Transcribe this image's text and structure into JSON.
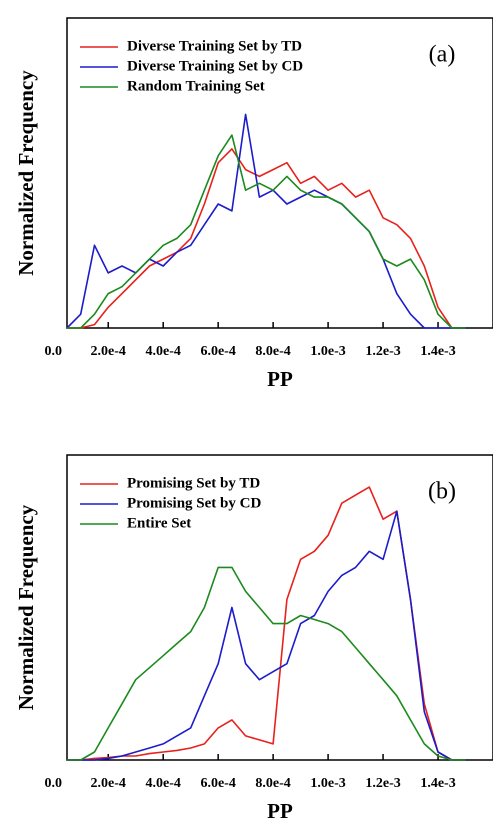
{
  "chart_data": [
    {
      "type": "line",
      "annotation": "(a)",
      "xlabel": "PP",
      "ylabel": "Normalized Frequency",
      "legend": "upper left",
      "x": [
        5e-05,
        0.0001,
        0.00015,
        0.0002,
        0.00025,
        0.0003,
        0.00035,
        0.0004,
        0.00045,
        0.0005,
        0.00055,
        0.0006,
        0.00065,
        0.0007,
        0.00075,
        0.0008,
        0.00085,
        0.0009,
        0.00095,
        0.001,
        0.00105,
        0.0011,
        0.00115,
        0.0012,
        0.00125,
        0.0013,
        0.00135,
        0.0014,
        0.00145,
        0.0015
      ],
      "series": [
        {
          "name": "Diverse Training Set by TD",
          "color": "#e8211c",
          "values": [
            0,
            0,
            0.05,
            0.3,
            0.5,
            0.7,
            0.9,
            1.0,
            1.1,
            1.3,
            1.8,
            2.4,
            2.6,
            2.3,
            2.2,
            2.3,
            2.4,
            2.1,
            2.2,
            2.0,
            2.1,
            1.9,
            2.0,
            1.6,
            1.5,
            1.3,
            0.9,
            0.3,
            0,
            0
          ]
        },
        {
          "name": "Diverse Training Set by CD",
          "color": "#1c1ccc",
          "values": [
            0,
            0.2,
            1.2,
            0.8,
            0.9,
            0.8,
            1.0,
            0.9,
            1.1,
            1.2,
            1.5,
            1.8,
            1.7,
            3.1,
            1.9,
            2.0,
            1.8,
            1.9,
            2.0,
            1.9,
            1.8,
            1.6,
            1.4,
            1.0,
            0.5,
            0.2,
            0,
            0,
            0,
            0
          ]
        },
        {
          "name": "Random Training Set",
          "color": "#1c8a1c",
          "values": [
            0,
            0,
            0.2,
            0.5,
            0.6,
            0.8,
            1.0,
            1.2,
            1.3,
            1.5,
            2.0,
            2.5,
            2.8,
            2.0,
            2.1,
            2.0,
            2.2,
            2.0,
            1.9,
            1.9,
            1.8,
            1.6,
            1.4,
            1.0,
            0.9,
            1.0,
            0.7,
            0.2,
            0,
            0
          ]
        }
      ],
      "xlim": [
        5e-05,
        0.0016
      ],
      "ylim": [
        0,
        4.5
      ],
      "xticks": [
        {
          "value": 0,
          "label": "0.0"
        },
        {
          "value": 0.0002,
          "label": "2.0e-4"
        },
        {
          "value": 0.0004,
          "label": "4.0e-4"
        },
        {
          "value": 0.0006,
          "label": "6.0e-4"
        },
        {
          "value": 0.0008,
          "label": "8.0e-4"
        },
        {
          "value": 0.001,
          "label": "1.0e-3"
        },
        {
          "value": 0.0012,
          "label": "1.2e-3"
        },
        {
          "value": 0.0014,
          "label": "1.4e-3"
        }
      ]
    },
    {
      "type": "line",
      "annotation": "(b)",
      "xlabel": "PP",
      "ylabel": "Normalized Frequency",
      "legend": "upper left",
      "x": [
        5e-05,
        0.0001,
        0.00015,
        0.0002,
        0.00025,
        0.0003,
        0.00035,
        0.0004,
        0.00045,
        0.0005,
        0.00055,
        0.0006,
        0.00065,
        0.0007,
        0.00075,
        0.0008,
        0.00085,
        0.0009,
        0.00095,
        0.001,
        0.00105,
        0.0011,
        0.00115,
        0.0012,
        0.00125,
        0.0013,
        0.00135,
        0.0014,
        0.00145,
        0.0015
      ],
      "series": [
        {
          "name": "Promising Set by TD",
          "color": "#e8211c",
          "values": [
            0,
            0,
            0.02,
            0.03,
            0.05,
            0.05,
            0.08,
            0.1,
            0.12,
            0.15,
            0.2,
            0.4,
            0.5,
            0.3,
            0.25,
            0.2,
            2.0,
            2.5,
            2.6,
            2.8,
            3.2,
            3.3,
            3.4,
            3.0,
            3.1,
            2.0,
            0.7,
            0.1,
            0,
            0
          ]
        },
        {
          "name": "Promising Set by CD",
          "color": "#1c1ccc",
          "values": [
            0,
            0,
            0,
            0.02,
            0.05,
            0.1,
            0.15,
            0.2,
            0.3,
            0.4,
            0.8,
            1.2,
            1.9,
            1.2,
            1.0,
            1.1,
            1.2,
            1.7,
            1.8,
            2.1,
            2.3,
            2.4,
            2.6,
            2.5,
            3.1,
            2.0,
            0.6,
            0.1,
            0,
            0
          ]
        },
        {
          "name": "Entire Set",
          "color": "#1c8a1c",
          "values": [
            0,
            0,
            0.1,
            0.4,
            0.7,
            1.0,
            1.15,
            1.3,
            1.45,
            1.6,
            1.9,
            2.4,
            2.4,
            2.1,
            1.9,
            1.7,
            1.7,
            1.8,
            1.75,
            1.7,
            1.6,
            1.4,
            1.2,
            1.0,
            0.8,
            0.5,
            0.2,
            0.05,
            0,
            0
          ]
        }
      ],
      "xlim": [
        5e-05,
        0.0016
      ],
      "ylim": [
        0,
        3.8
      ],
      "xticks": [
        {
          "value": 0,
          "label": "0.0"
        },
        {
          "value": 0.0002,
          "label": "2.0e-4"
        },
        {
          "value": 0.0004,
          "label": "4.0e-4"
        },
        {
          "value": 0.0006,
          "label": "6.0e-4"
        },
        {
          "value": 0.0008,
          "label": "8.0e-4"
        },
        {
          "value": 0.001,
          "label": "1.0e-3"
        },
        {
          "value": 0.0012,
          "label": "1.2e-3"
        },
        {
          "value": 0.0014,
          "label": "1.4e-3"
        }
      ]
    }
  ]
}
